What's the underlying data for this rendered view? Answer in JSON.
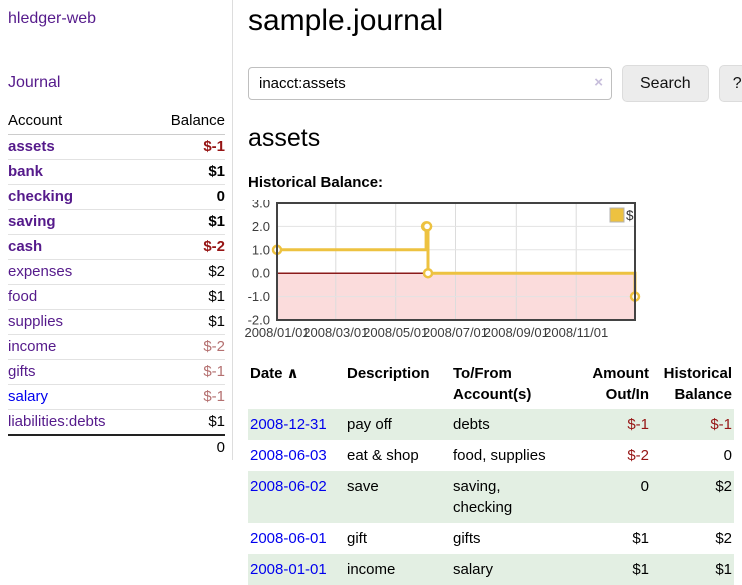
{
  "sidebar": {
    "brand": "hledger-web",
    "journal_label": "Journal",
    "headers": {
      "account": "Account",
      "balance": "Balance"
    },
    "accounts": [
      {
        "name": "assets",
        "balance": "$-1",
        "level": 1,
        "bold": true,
        "neg": "strong",
        "visited": true
      },
      {
        "name": "bank",
        "balance": "$1",
        "level": 2,
        "bold": true,
        "neg": null,
        "visited": true
      },
      {
        "name": "checking",
        "balance": "0",
        "level": 3,
        "bold": true,
        "neg": null,
        "visited": true
      },
      {
        "name": "saving",
        "balance": "$1",
        "level": 3,
        "bold": true,
        "neg": null,
        "visited": true
      },
      {
        "name": "cash",
        "balance": "$-2",
        "level": 2,
        "bold": true,
        "neg": "strong",
        "visited": true
      },
      {
        "name": "expenses",
        "balance": "$2",
        "level": 1,
        "bold": false,
        "neg": null,
        "visited": true
      },
      {
        "name": "food",
        "balance": "$1",
        "level": 2,
        "bold": false,
        "neg": null,
        "visited": true
      },
      {
        "name": "supplies",
        "balance": "$1",
        "level": 2,
        "bold": false,
        "neg": null,
        "visited": true
      },
      {
        "name": "income",
        "balance": "$-2",
        "level": 1,
        "bold": false,
        "neg": "soft",
        "visited": true
      },
      {
        "name": "gifts",
        "balance": "$-1",
        "level": 2,
        "bold": false,
        "neg": "soft",
        "visited": true
      },
      {
        "name": "salary",
        "balance": "$-1",
        "level": 2,
        "bold": false,
        "neg": "soft",
        "visited": false
      },
      {
        "name": "liabilities:debts",
        "balance": "$1",
        "level": 1,
        "bold": false,
        "neg": null,
        "visited": true
      }
    ],
    "total": "0"
  },
  "main": {
    "title": "sample.journal",
    "search": {
      "query": "inacct:assets",
      "clear_icon": "×",
      "search_button": "Search",
      "help_button": "?"
    },
    "account_heading": "assets",
    "chart_heading": "Historical Balance:"
  },
  "chart_data": {
    "type": "line",
    "title": "Historical Balance:",
    "steps": true,
    "series": [
      {
        "name": "$",
        "color": "#edc240",
        "points": [
          [
            "2008-01-01",
            1
          ],
          [
            "2008-06-01",
            2
          ],
          [
            "2008-06-02",
            2
          ],
          [
            "2008-06-03",
            0
          ],
          [
            "2008-12-31",
            -1
          ]
        ]
      }
    ],
    "xlim": [
      "2008-01-01",
      "2008-12-31"
    ],
    "ylim": [
      -2,
      3
    ],
    "x_ticks": [
      "2008/01/01",
      "2008/03/01",
      "2008/05/01",
      "2008/07/01",
      "2008/09/01",
      "2008/11/01"
    ],
    "y_ticks": [
      3.0,
      2.0,
      1.0,
      0.0,
      -1.0,
      -2.0
    ],
    "grid": true,
    "legend_position": "top-right",
    "negative_region_color": "#fbdcdc",
    "zero_line_color": "#8b1a1a",
    "border_color": "#434343",
    "axis_label_color": "#3c3c3c"
  },
  "register": {
    "headers": {
      "date": "Date",
      "sort_icon": "∧",
      "description": "Description",
      "accounts": [
        "To/From",
        "Account(s)"
      ],
      "amount": [
        "Amount",
        "Out/In"
      ],
      "balance": [
        "Historical",
        "Balance"
      ]
    },
    "rows": [
      {
        "date": "2008-12-31",
        "description": "pay off",
        "accounts": [
          "debts"
        ],
        "amount": "$-1",
        "amount_neg": true,
        "balance": "$-1",
        "balance_neg": true
      },
      {
        "date": "2008-06-03",
        "description": "eat & shop",
        "accounts": [
          "food, supplies"
        ],
        "amount": "$-2",
        "amount_neg": true,
        "balance": "0",
        "balance_neg": false
      },
      {
        "date": "2008-06-02",
        "description": "save",
        "accounts": [
          "saving,",
          "checking"
        ],
        "amount": "0",
        "amount_neg": false,
        "balance": "$2",
        "balance_neg": false
      },
      {
        "date": "2008-06-01",
        "description": "gift",
        "accounts": [
          "gifts"
        ],
        "amount": "$1",
        "amount_neg": false,
        "balance": "$2",
        "balance_neg": false
      },
      {
        "date": "2008-01-01",
        "description": "income",
        "accounts": [
          "salary"
        ],
        "amount": "$1",
        "amount_neg": false,
        "balance": "$1",
        "balance_neg": false
      }
    ]
  },
  "colors": {
    "link_visited": "#551a8b",
    "link_unvisited": "#0000ee",
    "negative_strong": "#961414",
    "negative_soft": "#b47070",
    "row_stripe_green": "#e3efe3",
    "series_gold": "#edc240"
  }
}
